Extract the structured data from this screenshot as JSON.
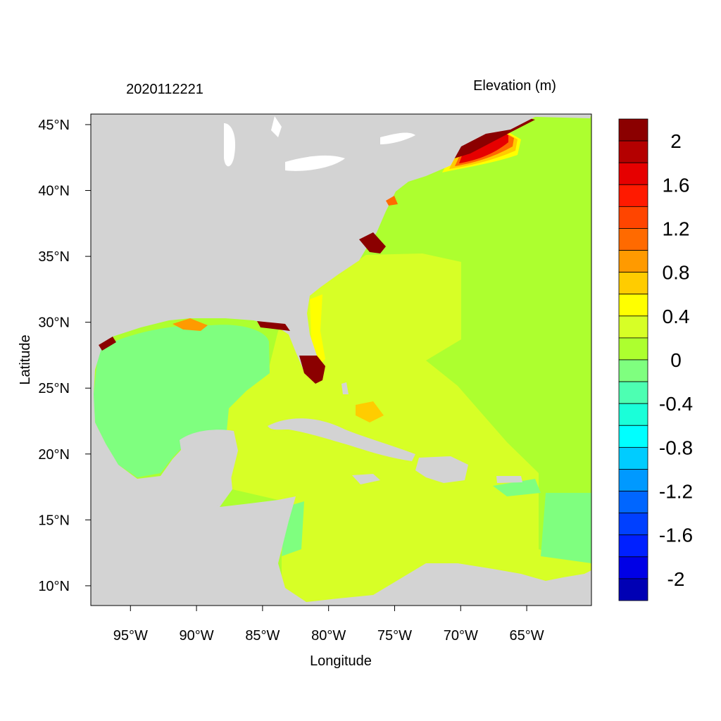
{
  "header": {
    "timestamp": "2020112221",
    "variable_title": "Elevation (m)"
  },
  "axes": {
    "xlabel": "Longitude",
    "ylabel": "Latitude",
    "x_ticks": [
      "95°W",
      "90°W",
      "85°W",
      "80°W",
      "75°W",
      "70°W",
      "65°W"
    ],
    "x_tick_values": [
      -95,
      -90,
      -85,
      -80,
      -75,
      -70,
      -65
    ],
    "y_ticks": [
      "45°N",
      "40°N",
      "35°N",
      "30°N",
      "25°N",
      "20°N",
      "15°N",
      "10°N"
    ],
    "y_tick_values": [
      45,
      40,
      35,
      30,
      25,
      20,
      15,
      10
    ],
    "lon_range": [
      -98,
      -60.1
    ],
    "lat_range": [
      8.5,
      45.8
    ]
  },
  "map": {
    "land_color": "#d3d3d3",
    "water_bg_color": "#adff2f"
  },
  "colorbar": {
    "levels": [
      "2.2",
      "2",
      "1.8",
      "1.6",
      "1.4",
      "1.2",
      "1",
      "0.8",
      "0.6",
      "0.4",
      "0.2",
      "0",
      "-0.2",
      "-0.4",
      "-0.6",
      "-0.8",
      "-1",
      "-1.2",
      "-1.4",
      "-1.6",
      "-1.8",
      "-2",
      "-2.2"
    ],
    "colors_top_to_bottom": [
      "#8b0000",
      "#b40000",
      "#e60000",
      "#ff1a00",
      "#ff4500",
      "#ff6a00",
      "#ff9a00",
      "#ffcc00",
      "#ffff00",
      "#d7ff26",
      "#adff2f",
      "#7fff7f",
      "#4dffb2",
      "#1affd9",
      "#00ffff",
      "#00ccff",
      "#0099ff",
      "#0066ff",
      "#0040ff",
      "#0020ff",
      "#0000e6",
      "#0000b4"
    ],
    "labels": [
      "2",
      "1.6",
      "1.2",
      "0.8",
      "0.4",
      "0",
      "-0.4",
      "-0.8",
      "-1.2",
      "-1.6",
      "-2"
    ]
  }
}
